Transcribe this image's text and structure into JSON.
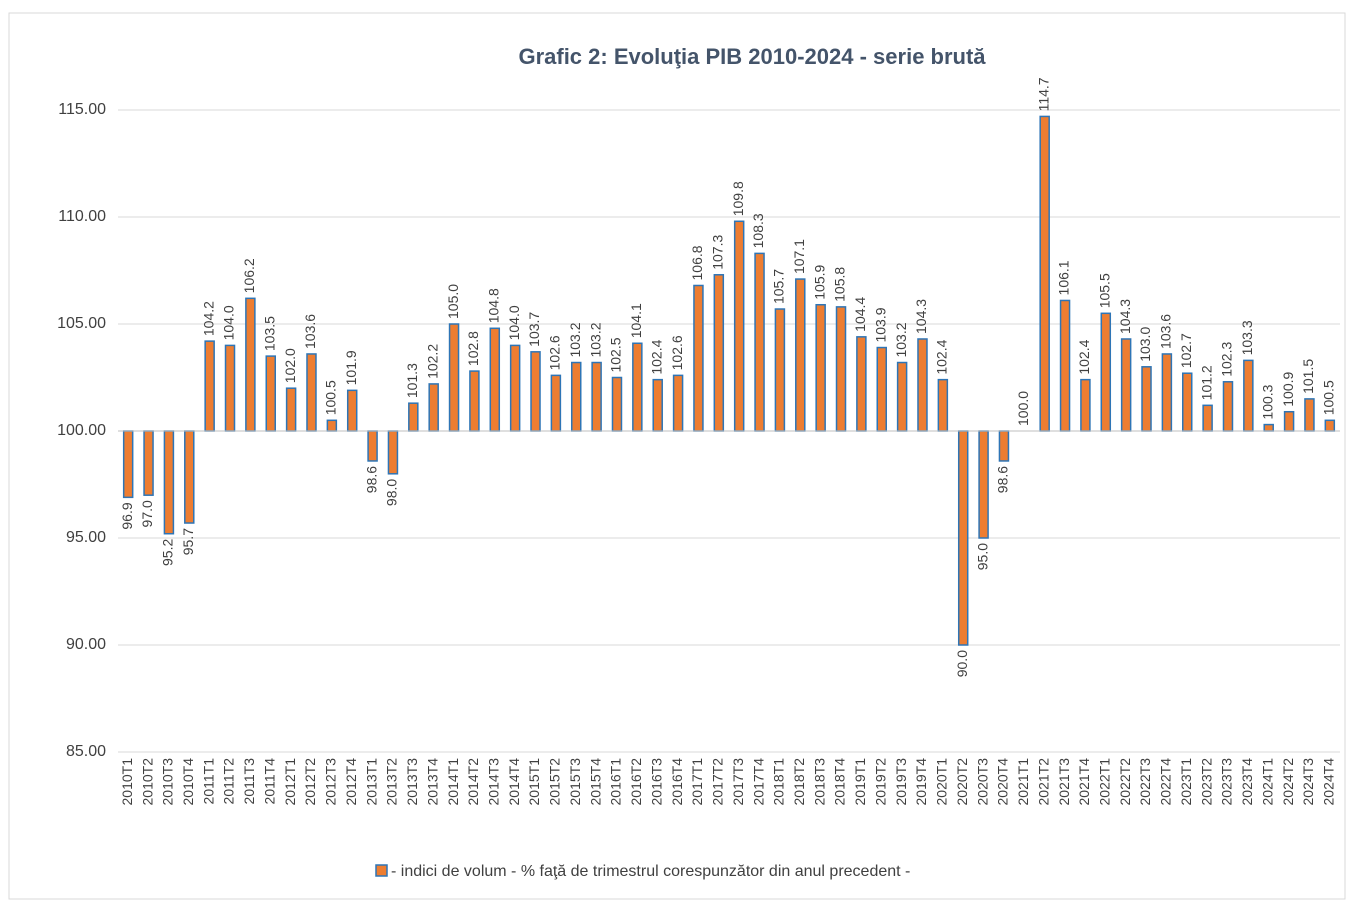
{
  "chart_data": {
    "type": "bar",
    "title": "Grafic 2: Evoluţia PIB 2010-2024 - serie brută",
    "categories": [
      "2010T1",
      "2010T2",
      "2010T3",
      "2010T4",
      "2011T1",
      "2011T2",
      "2011T3",
      "2011T4",
      "2012T1",
      "2012T2",
      "2012T3",
      "2012T4",
      "2013T1",
      "2013T2",
      "2013T3",
      "2013T4",
      "2014T1",
      "2014T2",
      "2014T3",
      "2014T4",
      "2015T1",
      "2015T2",
      "2015T3",
      "2015T4",
      "2016T1",
      "2016T2",
      "2016T3",
      "2016T4",
      "2017T1",
      "2017T2",
      "2017T3",
      "2017T4",
      "2018T1",
      "2018T2",
      "2018T3",
      "2018T4",
      "2019T1",
      "2019T2",
      "2019T3",
      "2019T4",
      "2020T1",
      "2020T2",
      "2020T3",
      "2020T4",
      "2021T1",
      "2021T2",
      "2021T3",
      "2021T4",
      "2022T1",
      "2022T2",
      "2022T3",
      "2022T4",
      "2023T1",
      "2023T2",
      "2023T3",
      "2023T4",
      "2024T1",
      "2024T2",
      "2024T3",
      "2024T4"
    ],
    "series": [
      {
        "name": "- indici de volum - % faţă de trimestrul corespunzător din anul precedent -",
        "color": "#ED7D31",
        "stroke": "#2E75B6",
        "values": [
          96.9,
          97.0,
          95.2,
          95.7,
          104.2,
          104.0,
          106.2,
          103.5,
          102.0,
          103.6,
          100.5,
          101.9,
          98.6,
          98.0,
          101.3,
          102.2,
          105.0,
          102.8,
          104.8,
          104.0,
          103.7,
          102.6,
          103.2,
          103.2,
          102.5,
          104.1,
          102.4,
          102.6,
          106.8,
          107.3,
          109.8,
          108.3,
          105.7,
          107.1,
          105.9,
          105.8,
          104.4,
          103.9,
          103.2,
          104.3,
          102.4,
          90.0,
          95.0,
          98.6,
          100.0,
          114.7,
          106.1,
          102.4,
          105.5,
          104.3,
          103.0,
          103.6,
          102.7,
          101.2,
          102.3,
          103.3,
          100.3,
          100.9,
          101.5,
          100.5
        ],
        "value_labels": [
          "96.9",
          "97.0",
          "95.2",
          "95.7",
          "104.2",
          "104.0",
          "106.2",
          "103.5",
          "102.0",
          "103.6",
          "100.5",
          "101.9",
          "98.6",
          "98.0",
          "101.3",
          "102.2",
          "105.0",
          "102.8",
          "104.8",
          "104.0",
          "103.7",
          "102.6",
          "103.2",
          "103.2",
          "102.5",
          "104.1",
          "102.4",
          "102.6",
          "106.8",
          "107.3",
          "109.8",
          "108.3",
          "105.7",
          "107.1",
          "105.9",
          "105.8",
          "104.4",
          "103.9",
          "103.2",
          "104.3",
          "102.4",
          "90.0",
          "95.0",
          "98.6",
          "100.0",
          "114.7",
          "106.1",
          "102.4",
          "105.5",
          "104.3",
          "103.0",
          "103.6",
          "102.7",
          "101.2",
          "102.3",
          "103.3",
          "100.3",
          "100.9",
          "101.5",
          "100.5"
        ]
      }
    ],
    "ylim": [
      85,
      115
    ],
    "yticks": [
      {
        "value": 85,
        "label": "85.00"
      },
      {
        "value": 90,
        "label": "90.00"
      },
      {
        "value": 95,
        "label": "95.00"
      },
      {
        "value": 100,
        "label": "100.00"
      },
      {
        "value": 105,
        "label": "105.00"
      },
      {
        "value": 110,
        "label": "110.00"
      },
      {
        "value": 115,
        "label": "115.00"
      }
    ],
    "base": 100,
    "grid": true,
    "legend": "bottom"
  }
}
